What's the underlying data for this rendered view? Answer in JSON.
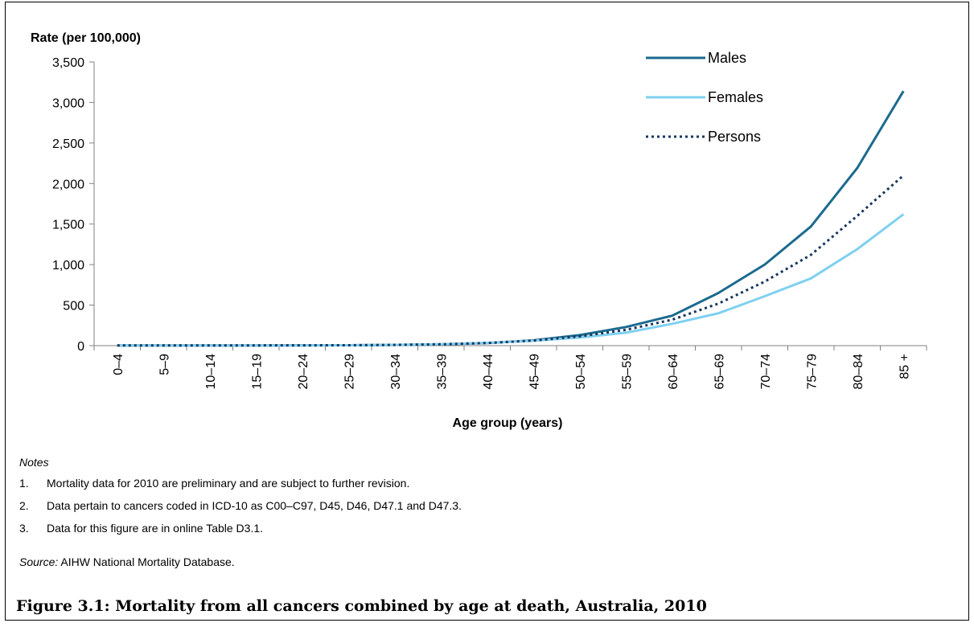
{
  "chart_data": {
    "type": "line",
    "ylabel": "Rate (per 100,000)",
    "xlabel": "Age group (years)",
    "ylim": [
      0,
      3500
    ],
    "yticks": [
      0,
      500,
      1000,
      1500,
      2000,
      2500,
      3000,
      3500
    ],
    "ytick_labels": [
      "0",
      "500",
      "1,000",
      "1,500",
      "2,000",
      "2,500",
      "3,000",
      "3,500"
    ],
    "categories": [
      "0–4",
      "5–9",
      "10–14",
      "15–19",
      "20–24",
      "25–29",
      "30–34",
      "35–39",
      "40–44",
      "45–49",
      "50–54",
      "55–59",
      "60–64",
      "65–69",
      "70–74",
      "75–79",
      "80–84",
      "85 +"
    ],
    "series": [
      {
        "name": "Males",
        "color": "#1b6a8e",
        "style": "solid",
        "values": [
          2,
          2,
          2,
          3,
          4,
          5,
          9,
          16,
          32,
          65,
          130,
          230,
          370,
          650,
          1000,
          1470,
          2190,
          3140
        ]
      },
      {
        "name": "Females",
        "color": "#7fd0f0",
        "style": "solid",
        "values": [
          2,
          2,
          2,
          2,
          3,
          5,
          10,
          18,
          35,
          60,
          100,
          160,
          270,
          400,
          610,
          830,
          1190,
          1620
        ]
      },
      {
        "name": "Persons",
        "color": "#17375e",
        "style": "dotted",
        "values": [
          2,
          2,
          2,
          3,
          4,
          5,
          10,
          17,
          33,
          62,
          115,
          195,
          320,
          520,
          790,
          1120,
          1600,
          2100
        ]
      }
    ],
    "legend_position": "top-right",
    "grid": false
  },
  "notes": {
    "title": "Notes",
    "items": [
      {
        "num": "1.",
        "text": "Mortality data for 2010 are preliminary and are subject to further revision."
      },
      {
        "num": "2.",
        "text": "Data pertain to cancers coded in ICD-10 as C00–C97, D45, D46, D47.1 and D47.3."
      },
      {
        "num": "3.",
        "text": "Data for this figure are in online Table D3.1."
      }
    ]
  },
  "source": {
    "label": "Source:",
    "text": " AIHW National Mortality Database."
  },
  "caption": "Figure 3.1: Mortality from all cancers combined by age at death, Australia, 2010"
}
